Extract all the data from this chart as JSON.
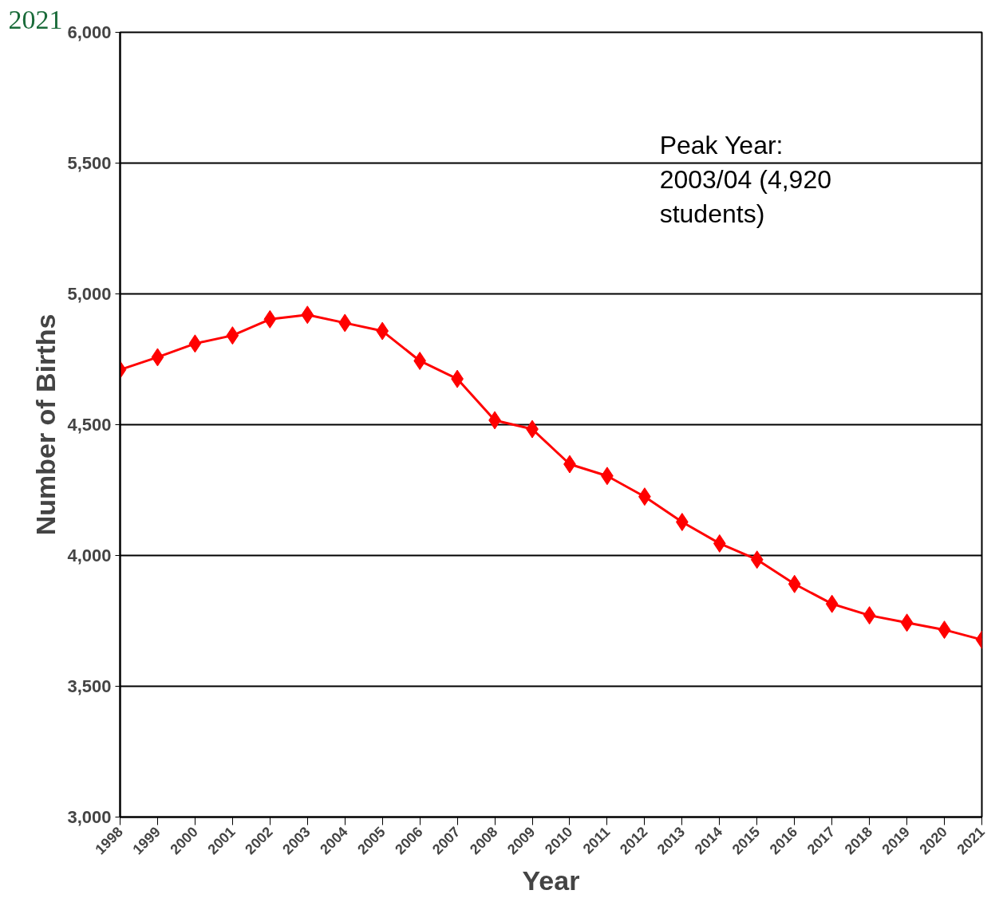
{
  "chart_data": {
    "type": "line",
    "xlabel": "Year",
    "ylabel": "Number of Births",
    "categories": [
      "1998",
      "1999",
      "2000",
      "2001",
      "2002",
      "2003",
      "2004",
      "2005",
      "2006",
      "2007",
      "2008",
      "2009",
      "2010",
      "2011",
      "2012",
      "2013",
      "2014",
      "2015",
      "2016",
      "2017",
      "2018",
      "2019",
      "2020",
      "2021"
    ],
    "series": [
      {
        "color": "#ff0000",
        "values": [
          4710,
          4758,
          4810,
          4841,
          4903,
          4920,
          4889,
          4858,
          4744,
          4675,
          4517,
          4483,
          4349,
          4304,
          4225,
          4128,
          4046,
          3984,
          3891,
          3815,
          3771,
          3743,
          3716,
          3678
        ]
      }
    ],
    "ylim": [
      3000,
      6000
    ],
    "yticks": [
      {
        "value": 3000,
        "label": "3,000"
      },
      {
        "value": 3500,
        "label": "3,500"
      },
      {
        "value": 4000,
        "label": "4,000"
      },
      {
        "value": 4500,
        "label": "4,500"
      },
      {
        "value": 5000,
        "label": "5,000"
      },
      {
        "value": 5500,
        "label": "5,500"
      },
      {
        "value": 6000,
        "label": "6,000"
      }
    ],
    "grid": "y",
    "marker": "diamond",
    "line_style": "solid",
    "annotations": [
      "Peak Year:\n2003/04 (4,920\nstudents)",
      "2021"
    ]
  }
}
